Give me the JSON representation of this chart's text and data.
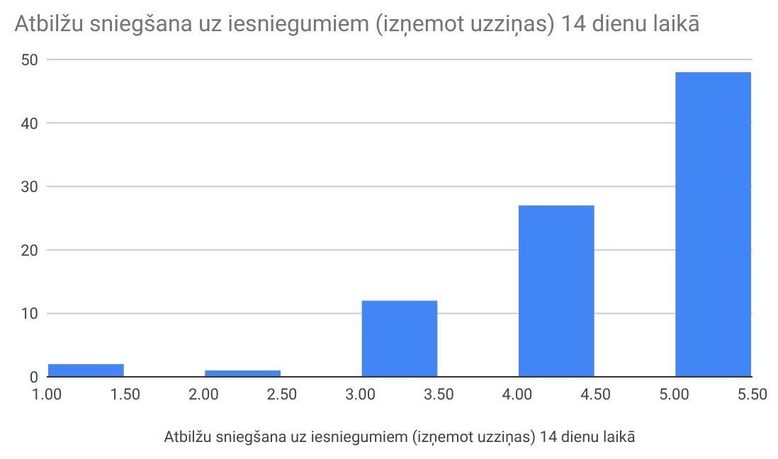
{
  "chart_data": {
    "type": "histogram",
    "title": "Atbilžu sniegšana uz iesniegumiem (izņemot uzziņas) 14 dienu laikā",
    "xlabel": "Atbilžu sniegšana uz iesniegumiem (izņemot uzziņas) 14 dienu laikā",
    "bins": [
      1,
      1.5,
      2,
      2.5,
      3,
      3.5,
      4,
      4.5,
      5,
      5.5
    ],
    "values": [
      2,
      0,
      1,
      0,
      12,
      0,
      27,
      0,
      48
    ],
    "color": "#4285f4",
    "xlim": [
      1,
      5.5
    ],
    "xticks": [
      {
        "value": 1,
        "label": "1.00"
      },
      {
        "value": 1.5,
        "label": "1.50"
      },
      {
        "value": 2,
        "label": "2.00"
      },
      {
        "value": 2.5,
        "label": "2.50"
      },
      {
        "value": 3,
        "label": "3.00"
      },
      {
        "value": 3.5,
        "label": "3.50"
      },
      {
        "value": 4,
        "label": "4.00"
      },
      {
        "value": 4.5,
        "label": "4.50"
      },
      {
        "value": 5,
        "label": "5.00"
      },
      {
        "value": 5.5,
        "label": "5.50"
      }
    ],
    "ylim": [
      0,
      50
    ],
    "yticks": [
      0,
      10,
      20,
      30,
      40,
      50
    ],
    "grid": "y"
  }
}
